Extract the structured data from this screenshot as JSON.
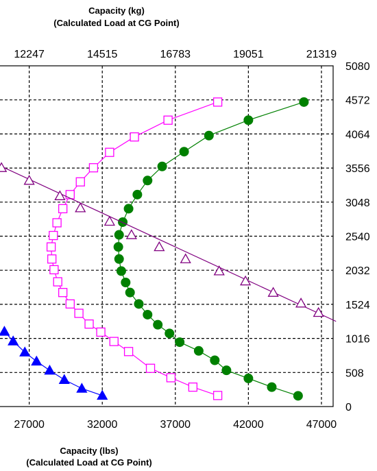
{
  "chart_data": {
    "type": "scatter",
    "top_axis": {
      "title_line1": "Capacity (kg)",
      "title_line2": "(Calculated Load at CG Point)",
      "ticks": [
        "12247",
        "14515",
        "16783",
        "19051",
        "21319"
      ]
    },
    "bottom_axis": {
      "title_line1": "Capacity (lbs)",
      "title_line2": "(Calculated Load at CG Point)",
      "ticks": [
        27000,
        32000,
        37000,
        42000,
        47000
      ],
      "xlim": [
        25000,
        47800
      ]
    },
    "right_axis": {
      "ticks": [
        0,
        508,
        1016,
        1524,
        2032,
        2540,
        3048,
        3556,
        4064,
        4572,
        5080
      ],
      "ylim": [
        0,
        5080
      ]
    },
    "grid": true,
    "series": [
      {
        "marker": "triangle-filled",
        "color": "#0000ff",
        "points": [
          [
            25300,
            1120
          ],
          [
            25900,
            975
          ],
          [
            26700,
            810
          ],
          [
            27500,
            675
          ],
          [
            28400,
            540
          ],
          [
            29400,
            400
          ],
          [
            30600,
            270
          ],
          [
            32000,
            165
          ]
        ]
      },
      {
        "marker": "square-open",
        "color": "#ff00ff",
        "points": [
          [
            39900,
            4540
          ],
          [
            36500,
            4270
          ],
          [
            34200,
            4020
          ],
          [
            32500,
            3790
          ],
          [
            31400,
            3560
          ],
          [
            30500,
            3350
          ],
          [
            29800,
            3160
          ],
          [
            29300,
            2950
          ],
          [
            28900,
            2740
          ],
          [
            28650,
            2550
          ],
          [
            28500,
            2380
          ],
          [
            28550,
            2200
          ],
          [
            28700,
            2040
          ],
          [
            28950,
            1860
          ],
          [
            29300,
            1700
          ],
          [
            29800,
            1530
          ],
          [
            30400,
            1390
          ],
          [
            31100,
            1230
          ],
          [
            31900,
            1110
          ],
          [
            32800,
            970
          ],
          [
            33800,
            820
          ],
          [
            35300,
            570
          ],
          [
            36700,
            430
          ],
          [
            38200,
            290
          ],
          [
            39900,
            165
          ]
        ]
      },
      {
        "marker": "circle-filled",
        "color": "#008000",
        "points": [
          [
            45800,
            4540
          ],
          [
            42000,
            4270
          ],
          [
            39300,
            4040
          ],
          [
            37600,
            3800
          ],
          [
            36100,
            3580
          ],
          [
            35100,
            3370
          ],
          [
            34400,
            3160
          ],
          [
            33800,
            2950
          ],
          [
            33400,
            2750
          ],
          [
            33150,
            2560
          ],
          [
            33100,
            2380
          ],
          [
            33150,
            2200
          ],
          [
            33300,
            2020
          ],
          [
            33600,
            1850
          ],
          [
            33900,
            1700
          ],
          [
            34500,
            1530
          ],
          [
            35100,
            1370
          ],
          [
            35800,
            1220
          ],
          [
            36600,
            1090
          ],
          [
            37300,
            960
          ],
          [
            38600,
            830
          ],
          [
            39700,
            690
          ],
          [
            40500,
            540
          ],
          [
            42000,
            420
          ],
          [
            43600,
            290
          ],
          [
            45400,
            160
          ]
        ]
      },
      {
        "marker": "triangle-open",
        "color": "#800080",
        "line_extent": [
          [
            24800,
            3610
          ],
          [
            48000,
            1270
          ]
        ],
        "points": [
          [
            25100,
            3560
          ],
          [
            27000,
            3370
          ],
          [
            29100,
            3140
          ],
          [
            30500,
            2960
          ],
          [
            32500,
            2760
          ],
          [
            34000,
            2560
          ],
          [
            35900,
            2380
          ],
          [
            37700,
            2200
          ],
          [
            40000,
            2020
          ],
          [
            41800,
            1870
          ],
          [
            43700,
            1700
          ],
          [
            45600,
            1540
          ],
          [
            46800,
            1400
          ]
        ]
      }
    ]
  }
}
